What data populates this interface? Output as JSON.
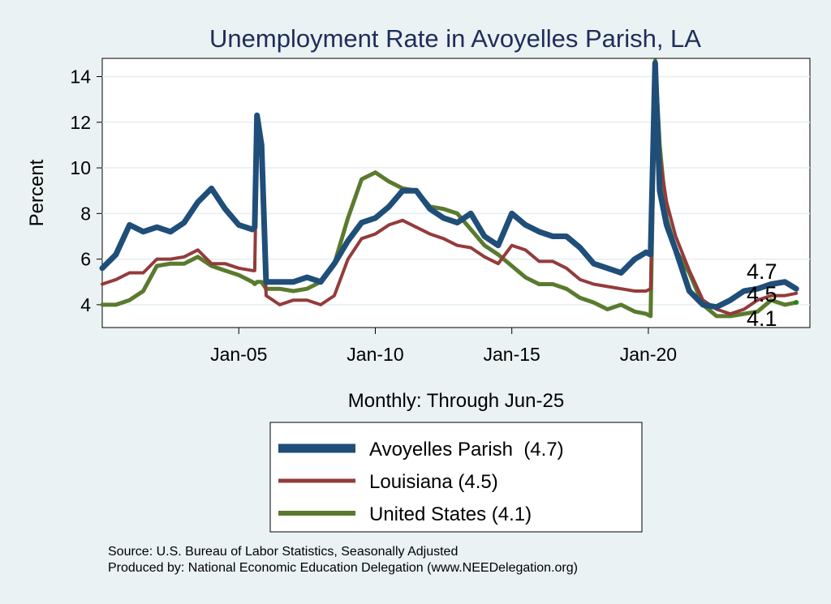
{
  "chart_data": {
    "type": "line",
    "title": "Unemployment Rate in Avoyelles Parish, LA",
    "ylabel": "Percent",
    "xlabel": "Monthly: Through Jun-25",
    "ylim": [
      3.0,
      14.8
    ],
    "xlim": [
      "2000-01",
      "2025-12"
    ],
    "yticks": [
      4,
      6,
      8,
      10,
      12,
      14
    ],
    "xticks": [
      {
        "label": "Jan-05",
        "date": "2005-01"
      },
      {
        "label": "Jan-10",
        "date": "2010-01"
      },
      {
        "label": "Jan-15",
        "date": "2015-01"
      },
      {
        "label": "Jan-20",
        "date": "2020-01"
      }
    ],
    "grid": true,
    "legend": "bottom",
    "end_labels": [
      "4.7",
      "4.5",
      "4.1"
    ],
    "series": [
      {
        "name": "Avoyelles Parish  (4.7)",
        "color": "#1f4e79",
        "points": [
          [
            "2000-01",
            5.6
          ],
          [
            "2000-07",
            6.2
          ],
          [
            "2001-01",
            7.5
          ],
          [
            "2001-07",
            7.2
          ],
          [
            "2002-01",
            7.4
          ],
          [
            "2002-07",
            7.2
          ],
          [
            "2003-01",
            7.6
          ],
          [
            "2003-07",
            8.5
          ],
          [
            "2004-01",
            9.1
          ],
          [
            "2004-07",
            8.2
          ],
          [
            "2005-01",
            7.5
          ],
          [
            "2005-07",
            7.3
          ],
          [
            "2005-08",
            7.4
          ],
          [
            "2005-09",
            12.3
          ],
          [
            "2005-11",
            11.0
          ],
          [
            "2006-01",
            5.0
          ],
          [
            "2006-07",
            5.0
          ],
          [
            "2007-01",
            5.0
          ],
          [
            "2007-07",
            5.2
          ],
          [
            "2008-01",
            5.0
          ],
          [
            "2008-07",
            5.8
          ],
          [
            "2009-01",
            6.8
          ],
          [
            "2009-07",
            7.6
          ],
          [
            "2010-01",
            7.8
          ],
          [
            "2010-07",
            8.3
          ],
          [
            "2011-01",
            9.0
          ],
          [
            "2011-07",
            9.0
          ],
          [
            "2012-01",
            8.2
          ],
          [
            "2012-07",
            7.8
          ],
          [
            "2013-01",
            7.6
          ],
          [
            "2013-07",
            8.0
          ],
          [
            "2014-01",
            7.0
          ],
          [
            "2014-07",
            6.6
          ],
          [
            "2015-01",
            8.0
          ],
          [
            "2015-07",
            7.5
          ],
          [
            "2016-01",
            7.2
          ],
          [
            "2016-07",
            7.0
          ],
          [
            "2017-01",
            7.0
          ],
          [
            "2017-07",
            6.5
          ],
          [
            "2018-01",
            5.8
          ],
          [
            "2018-07",
            5.6
          ],
          [
            "2019-01",
            5.4
          ],
          [
            "2019-07",
            6.0
          ],
          [
            "2019-12",
            6.3
          ],
          [
            "2020-02",
            6.2
          ],
          [
            "2020-04",
            14.6
          ],
          [
            "2020-06",
            9.0
          ],
          [
            "2020-09",
            7.5
          ],
          [
            "2021-01",
            6.4
          ],
          [
            "2021-07",
            4.6
          ],
          [
            "2022-01",
            4.0
          ],
          [
            "2022-07",
            3.9
          ],
          [
            "2023-01",
            4.2
          ],
          [
            "2023-07",
            4.6
          ],
          [
            "2024-01",
            4.7
          ],
          [
            "2024-07",
            4.9
          ],
          [
            "2025-01",
            5.0
          ],
          [
            "2025-06",
            4.7
          ]
        ]
      },
      {
        "name": "Louisiana (4.5)",
        "color": "#943b3b",
        "points": [
          [
            "2000-01",
            4.9
          ],
          [
            "2000-07",
            5.1
          ],
          [
            "2001-01",
            5.4
          ],
          [
            "2001-07",
            5.4
          ],
          [
            "2002-01",
            6.0
          ],
          [
            "2002-07",
            6.0
          ],
          [
            "2003-01",
            6.1
          ],
          [
            "2003-07",
            6.4
          ],
          [
            "2004-01",
            5.8
          ],
          [
            "2004-07",
            5.8
          ],
          [
            "2005-01",
            5.6
          ],
          [
            "2005-07",
            5.5
          ],
          [
            "2005-08",
            5.5
          ],
          [
            "2005-09",
            11.6
          ],
          [
            "2005-11",
            10.5
          ],
          [
            "2006-01",
            4.4
          ],
          [
            "2006-07",
            4.0
          ],
          [
            "2007-01",
            4.2
          ],
          [
            "2007-07",
            4.2
          ],
          [
            "2008-01",
            4.0
          ],
          [
            "2008-07",
            4.4
          ],
          [
            "2009-01",
            6.0
          ],
          [
            "2009-07",
            6.9
          ],
          [
            "2010-01",
            7.1
          ],
          [
            "2010-07",
            7.5
          ],
          [
            "2011-01",
            7.7
          ],
          [
            "2011-07",
            7.4
          ],
          [
            "2012-01",
            7.1
          ],
          [
            "2012-07",
            6.9
          ],
          [
            "2013-01",
            6.6
          ],
          [
            "2013-07",
            6.5
          ],
          [
            "2014-01",
            6.1
          ],
          [
            "2014-07",
            5.8
          ],
          [
            "2015-01",
            6.6
          ],
          [
            "2015-07",
            6.4
          ],
          [
            "2016-01",
            5.9
          ],
          [
            "2016-07",
            5.9
          ],
          [
            "2017-01",
            5.6
          ],
          [
            "2017-07",
            5.1
          ],
          [
            "2018-01",
            4.9
          ],
          [
            "2018-07",
            4.8
          ],
          [
            "2019-01",
            4.7
          ],
          [
            "2019-07",
            4.6
          ],
          [
            "2019-12",
            4.6
          ],
          [
            "2020-02",
            4.7
          ],
          [
            "2020-04",
            14.5
          ],
          [
            "2020-06",
            10.5
          ],
          [
            "2020-09",
            8.5
          ],
          [
            "2021-01",
            7.0
          ],
          [
            "2021-07",
            5.5
          ],
          [
            "2022-01",
            4.2
          ],
          [
            "2022-07",
            3.8
          ],
          [
            "2023-01",
            3.6
          ],
          [
            "2023-07",
            3.8
          ],
          [
            "2024-01",
            4.2
          ],
          [
            "2024-07",
            4.4
          ],
          [
            "2025-01",
            4.4
          ],
          [
            "2025-06",
            4.5
          ]
        ]
      },
      {
        "name": "United States (4.1)",
        "color": "#5a7a2e",
        "points": [
          [
            "2000-01",
            4.0
          ],
          [
            "2000-07",
            4.0
          ],
          [
            "2001-01",
            4.2
          ],
          [
            "2001-07",
            4.6
          ],
          [
            "2002-01",
            5.7
          ],
          [
            "2002-07",
            5.8
          ],
          [
            "2003-01",
            5.8
          ],
          [
            "2003-07",
            6.1
          ],
          [
            "2004-01",
            5.7
          ],
          [
            "2004-07",
            5.5
          ],
          [
            "2005-01",
            5.3
          ],
          [
            "2005-07",
            5.0
          ],
          [
            "2005-08",
            4.9
          ],
          [
            "2005-09",
            5.0
          ],
          [
            "2005-11",
            5.0
          ],
          [
            "2006-01",
            4.7
          ],
          [
            "2006-07",
            4.7
          ],
          [
            "2007-01",
            4.6
          ],
          [
            "2007-07",
            4.7
          ],
          [
            "2008-01",
            5.0
          ],
          [
            "2008-07",
            5.8
          ],
          [
            "2009-01",
            7.8
          ],
          [
            "2009-07",
            9.5
          ],
          [
            "2010-01",
            9.8
          ],
          [
            "2010-07",
            9.4
          ],
          [
            "2011-01",
            9.1
          ],
          [
            "2011-07",
            9.0
          ],
          [
            "2012-01",
            8.3
          ],
          [
            "2012-07",
            8.2
          ],
          [
            "2013-01",
            8.0
          ],
          [
            "2013-07",
            7.3
          ],
          [
            "2014-01",
            6.6
          ],
          [
            "2014-07",
            6.2
          ],
          [
            "2015-01",
            5.7
          ],
          [
            "2015-07",
            5.2
          ],
          [
            "2016-01",
            4.9
          ],
          [
            "2016-07",
            4.9
          ],
          [
            "2017-01",
            4.7
          ],
          [
            "2017-07",
            4.3
          ],
          [
            "2018-01",
            4.1
          ],
          [
            "2018-07",
            3.8
          ],
          [
            "2019-01",
            4.0
          ],
          [
            "2019-07",
            3.7
          ],
          [
            "2019-12",
            3.6
          ],
          [
            "2020-02",
            3.5
          ],
          [
            "2020-04",
            14.7
          ],
          [
            "2020-06",
            11.0
          ],
          [
            "2020-09",
            7.8
          ],
          [
            "2021-01",
            6.4
          ],
          [
            "2021-07",
            5.4
          ],
          [
            "2022-01",
            4.0
          ],
          [
            "2022-07",
            3.5
          ],
          [
            "2023-01",
            3.5
          ],
          [
            "2023-07",
            3.6
          ],
          [
            "2024-01",
            3.7
          ],
          [
            "2024-07",
            4.2
          ],
          [
            "2025-01",
            4.0
          ],
          [
            "2025-06",
            4.1
          ]
        ]
      }
    ]
  },
  "footer": {
    "source": "Source: U.S. Bureau of Labor Statistics, Seasonally Adjusted",
    "producer": "Produced by: National Economic Education Delegation (www.NEEDelegation.org)"
  }
}
